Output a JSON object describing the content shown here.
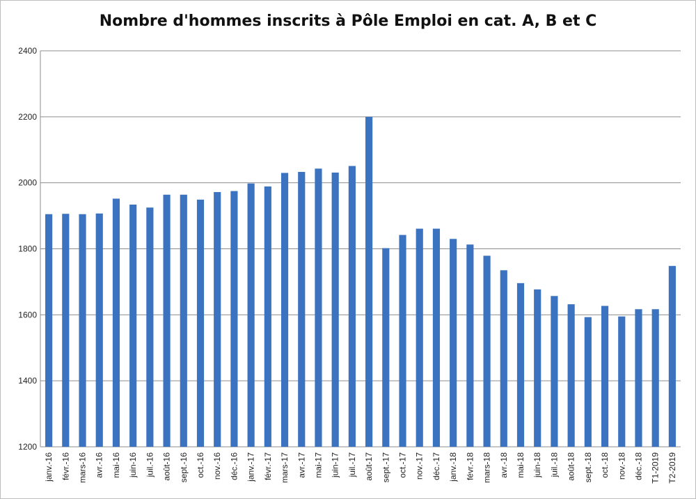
{
  "chart_data": {
    "type": "bar",
    "title": "Nombre d'hommes inscrits à Pôle Emploi en cat. A, B et C",
    "xlabel": "",
    "ylabel": "",
    "ylim": [
      1200,
      2400
    ],
    "yticks": [
      1200,
      1400,
      1600,
      1800,
      2000,
      2200,
      2400
    ],
    "grid": true,
    "legend": "none",
    "bar_color": "#3b73c0",
    "categories": [
      "janv.-16",
      "févr.-16",
      "mars-16",
      "avr.-16",
      "mai-16",
      "juin-16",
      "juil.-16",
      "août-16",
      "sept.-16",
      "oct.-16",
      "nov.-16",
      "déc.-16",
      "janv.-17",
      "févr.-17",
      "mars-17",
      "avr.-17",
      "mai-17",
      "juin-17",
      "juil.-17",
      "août-17",
      "sept.-17",
      "oct.-17",
      "nov.-17",
      "déc.-17",
      "janv.-18",
      "févr.-18",
      "mars-18",
      "avr.-18",
      "mai-18",
      "juin-18",
      "juil.-18",
      "août-18",
      "sept.-18",
      "oct.-18",
      "nov.-18",
      "déc.-18",
      "T1-2019",
      "T2-2019"
    ],
    "values": [
      1905,
      1906,
      1905,
      1907,
      1952,
      1934,
      1925,
      1964,
      1964,
      1949,
      1972,
      1975,
      1998,
      1989,
      2030,
      2033,
      2043,
      2031,
      2051,
      2200,
      1802,
      1842,
      1861,
      1861,
      1830,
      1813,
      1779,
      1735,
      1696,
      1677,
      1657,
      1632,
      1593,
      1627,
      1595,
      1617,
      1617,
      1748
    ]
  }
}
